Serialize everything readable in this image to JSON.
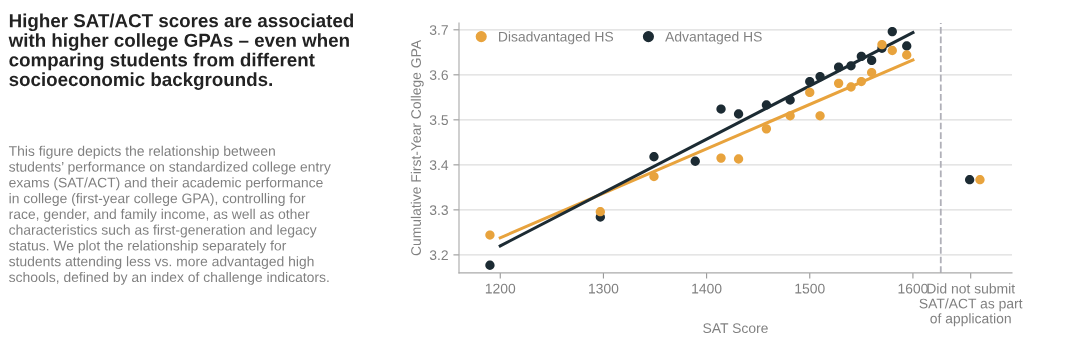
{
  "chart_data": {
    "type": "scatter",
    "title": "Higher SAT/ACT scores are associated\nwith higher college GPAs – even when\ncomparing students from different\nsocioeconomic backgrounds.",
    "annotations": [
      "This figure depicts the relationship between\nstudents’ performance on standardized college entry\nexams (SAT/ACT) and their academic performance\nin college (first-year college GPA), controlling for\nrace, gender, and family income, as well as other\ncharacteristics such as first-generation and legacy\nstatus. We plot the relationship separately for\nstudents attending less vs. more advantaged high\nschools, defined by an index of challenge indicators."
    ],
    "xlabel": "SAT Score",
    "ylabel": "Cumulative First-Year College GPA",
    "xlim": [
      1160,
      1696
    ],
    "ylim": [
      3.16,
      3.715
    ],
    "xticks": [
      1200,
      1300,
      1400,
      1500,
      1600,
      {
        "value": 1656,
        "label": "Did not submit\nSAT/ACT as part\nof application"
      }
    ],
    "yticks": [
      3.2,
      3.3,
      3.4,
      3.5,
      3.6,
      3.7
    ],
    "grid": "y",
    "legend": "top left",
    "marker": "circle",
    "ref_lines": [
      {
        "axis": "x",
        "value": 1627,
        "label": null,
        "color": "#b0b0b8",
        "line_style": "dashed"
      }
    ],
    "series": [
      {
        "name": "Disadvantaged HS",
        "color": "#e8a33d",
        "x": [
          1190,
          1297,
          1349,
          1414,
          1431,
          1458,
          1481,
          1500,
          1510,
          1528,
          1540,
          1550,
          1560,
          1570,
          1580,
          1594,
          1665
        ],
        "values": [
          3.244,
          3.296,
          3.374,
          3.415,
          3.413,
          3.48,
          3.509,
          3.561,
          3.509,
          3.581,
          3.573,
          3.585,
          3.605,
          3.667,
          3.654,
          3.644,
          3.367
        ]
      },
      {
        "name": "Advantaged HS",
        "color": "#1c2b33",
        "x": [
          1190,
          1297,
          1349,
          1389,
          1414,
          1431,
          1458,
          1481,
          1500,
          1510,
          1528,
          1540,
          1550,
          1560,
          1570,
          1580,
          1594,
          1655
        ],
        "values": [
          3.177,
          3.284,
          3.418,
          3.408,
          3.524,
          3.513,
          3.533,
          3.544,
          3.585,
          3.596,
          3.617,
          3.62,
          3.641,
          3.632,
          3.659,
          3.696,
          3.664,
          3.367
        ]
      },
      {
        "type": "line",
        "marker": "none",
        "color": "#e8a33d",
        "x": [
          1200,
          1600
        ],
        "values": [
          3.238,
          3.633
        ]
      },
      {
        "type": "line",
        "marker": "none",
        "color": "#1c2b33",
        "x": [
          1200,
          1600
        ],
        "values": [
          3.22,
          3.694
        ]
      }
    ]
  }
}
